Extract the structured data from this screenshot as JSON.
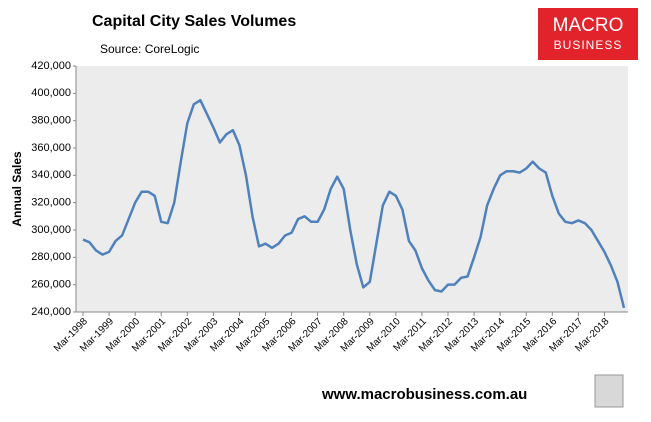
{
  "chart_data": {
    "type": "line",
    "title": "Capital City Sales Volumes",
    "subtitle": "Source: CoreLogic",
    "y_label": "Annual Sales",
    "logo": [
      "MACRO",
      "BUSINESS"
    ],
    "footer": "www.macrobusiness.com.au",
    "categories": [
      "Mar-1998",
      null,
      null,
      null,
      "Mar-1999",
      null,
      null,
      null,
      "Mar-2000",
      null,
      null,
      null,
      "Mar-2001",
      null,
      null,
      null,
      "Mar-2002",
      null,
      null,
      null,
      "Mar-2003",
      null,
      null,
      null,
      "Mar-2004",
      null,
      null,
      null,
      "Mar-2005",
      null,
      null,
      null,
      "Mar-2006",
      null,
      null,
      null,
      "Mar-2007",
      null,
      null,
      null,
      "Mar-2008",
      null,
      null,
      null,
      "Mar-2009",
      null,
      null,
      null,
      "Mar-2010",
      null,
      null,
      null,
      "Mar-2011",
      null,
      null,
      null,
      "Mar-2012",
      null,
      null,
      null,
      "Mar-2013",
      null,
      null,
      null,
      "Mar-2014",
      null,
      null,
      null,
      "Mar-2015",
      null,
      null,
      null,
      "Mar-2016",
      null,
      null,
      null,
      "Mar-2017",
      null,
      null,
      null,
      "Mar-2018",
      null,
      null,
      null
    ],
    "series": [
      {
        "name": "Annual Sales",
        "color": "#4f81bd",
        "values": [
          293000,
          291000,
          285000,
          282000,
          284000,
          292000,
          296000,
          308000,
          320000,
          328000,
          328000,
          325000,
          306000,
          305000,
          320000,
          350000,
          378000,
          392000,
          395000,
          385000,
          375000,
          364000,
          370000,
          373000,
          362000,
          340000,
          310000,
          288000,
          290000,
          287000,
          290000,
          296000,
          298000,
          308000,
          310000,
          306000,
          306000,
          315000,
          330000,
          339000,
          330000,
          300000,
          275000,
          258000,
          262000,
          290000,
          318000,
          328000,
          325000,
          315000,
          292000,
          285000,
          272000,
          263000,
          256000,
          255000,
          260000,
          260000,
          265000,
          266000,
          280000,
          295000,
          318000,
          330000,
          340000,
          343000,
          343000,
          342000,
          345000,
          350000,
          345000,
          342000,
          325000,
          312000,
          306000,
          305000,
          307000,
          305000,
          300000,
          292000,
          284000,
          274000,
          262000,
          243000
        ]
      }
    ],
    "ylim": [
      240000,
      420000
    ],
    "yticks": [
      {
        "value": 240000,
        "label": "240,000"
      },
      {
        "value": 260000,
        "label": "260,000"
      },
      {
        "value": 280000,
        "label": "280,000"
      },
      {
        "value": 300000,
        "label": "300,000"
      },
      {
        "value": 320000,
        "label": "320,000"
      },
      {
        "value": 340000,
        "label": "340,000"
      },
      {
        "value": 360000,
        "label": "360,000"
      },
      {
        "value": 380000,
        "label": "380,000"
      },
      {
        "value": 400000,
        "label": "400,000"
      },
      {
        "value": 420000,
        "label": "420,000"
      }
    ],
    "grid": false
  }
}
